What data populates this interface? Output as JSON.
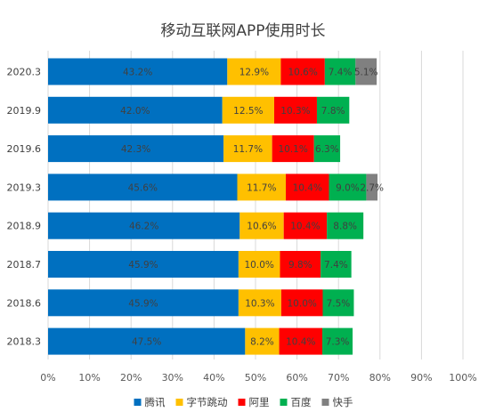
{
  "chart_data": {
    "type": "bar",
    "orientation": "horizontal",
    "stacked": true,
    "title": "移动互联网APP使用时长",
    "categories": [
      "2020.3",
      "2019.9",
      "2019.6",
      "2019.3",
      "2018.9",
      "2018.7",
      "2018.6",
      "2018.3"
    ],
    "series": [
      {
        "name": "腾讯",
        "color": "#0070c0",
        "values": [
          43.2,
          42.0,
          42.3,
          45.6,
          46.2,
          45.9,
          45.9,
          47.5
        ],
        "labels": [
          "43.2%",
          "42.0%",
          "42.3%",
          "45.6%",
          "46.2%",
          "45.9%",
          "45.9%",
          "47.5%"
        ]
      },
      {
        "name": "字节跳动",
        "color": "#ffc000",
        "values": [
          12.9,
          12.5,
          11.7,
          11.7,
          10.6,
          10.0,
          10.3,
          8.2
        ],
        "labels": [
          "12.9%",
          "12.5%",
          "11.7%",
          "11.7%",
          "10.6%",
          "10.0%",
          "10.3%",
          "8.2%"
        ]
      },
      {
        "name": "阿里",
        "color": "#ff0000",
        "values": [
          10.6,
          10.3,
          10.1,
          10.4,
          10.4,
          9.8,
          10.0,
          10.4
        ],
        "labels": [
          "10.6%",
          "10.3%",
          "10.1%",
          "10.4%",
          "10.4%",
          "9.8%",
          "10.0%",
          "10.4%"
        ]
      },
      {
        "name": "百度",
        "color": "#00b050",
        "values": [
          7.4,
          7.8,
          6.3,
          9.0,
          8.8,
          7.4,
          7.5,
          7.3
        ],
        "labels": [
          "7.4%",
          "7.8%",
          "6.3%",
          "9.0%",
          "8.8%",
          "7.4%",
          "7.5%",
          "7.3%"
        ]
      },
      {
        "name": "快手",
        "color": "#808080",
        "values": [
          5.1,
          0,
          0,
          2.7,
          0,
          0,
          0,
          0
        ],
        "labels": [
          "5.1%",
          "",
          "",
          "2.7%",
          "",
          "",
          "",
          ""
        ]
      }
    ],
    "xlim": [
      0,
      100
    ],
    "xticks": [
      "0%",
      "10%",
      "20%",
      "30%",
      "40%",
      "50%",
      "60%",
      "70%",
      "80%",
      "90%",
      "100%"
    ],
    "grid": true,
    "legend_position": "bottom"
  }
}
